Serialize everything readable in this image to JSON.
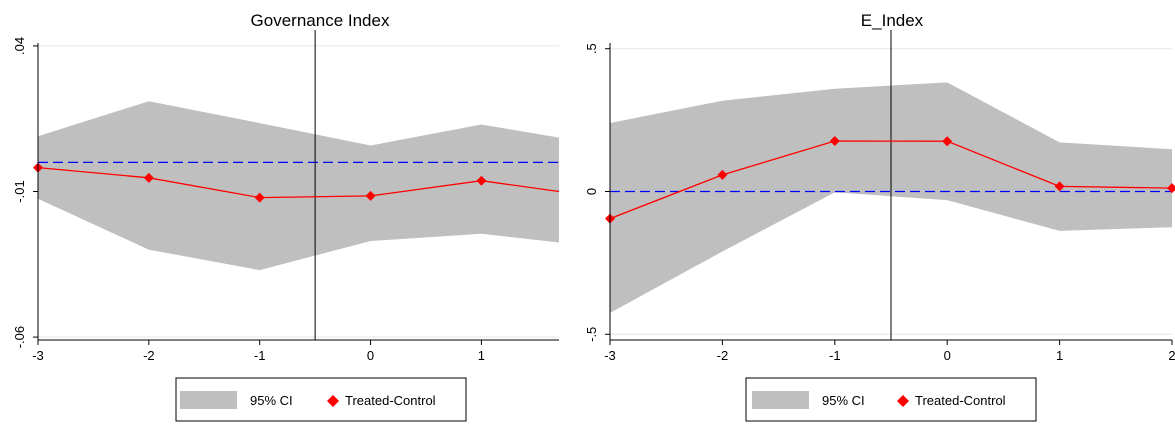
{
  "colors": {
    "ci_band": "#bfbfbf",
    "series_line": "#ff0000",
    "series_marker": "#ff0000",
    "zero_line": "#0000ff",
    "vline": "#000000",
    "gridline": "#e5e5e5",
    "text": "#000000"
  },
  "chart_data": [
    {
      "type": "line",
      "title": "Governance Index",
      "xlabel": "",
      "ylabel": "",
      "xlim": [
        -3,
        1.7
      ],
      "ylim": [
        -0.061,
        0.041
      ],
      "xticks": [
        -3,
        -2,
        -1,
        0,
        1
      ],
      "xtick_labels": [
        "-3",
        "-2",
        "-1",
        "0",
        "1"
      ],
      "yticks": [
        -0.06,
        -0.01,
        0.04
      ],
      "ytick_labels": [
        "-.06",
        "-.01",
        ".04"
      ],
      "grid": true,
      "reference_hline": 0,
      "reference_vline": -0.5,
      "x": [
        -3,
        -2,
        -1,
        0,
        1,
        1.7
      ],
      "series": [
        {
          "name": "Treated-Control",
          "kind": "line-marker",
          "values": [
            -0.0018,
            -0.0053,
            -0.0121,
            -0.0115,
            -0.0063,
            -0.01
          ]
        },
        {
          "name": "95% CI",
          "kind": "band",
          "lower": [
            -0.0125,
            -0.03,
            -0.037,
            -0.027,
            -0.0245,
            -0.0275
          ],
          "upper": [
            0.009,
            0.021,
            0.0135,
            0.0058,
            0.013,
            0.0085
          ]
        }
      ],
      "legend": {
        "position": "bottom",
        "entries": [
          "95% CI",
          "Treated-Control"
        ]
      }
    },
    {
      "type": "line",
      "title": "E_Index",
      "xlabel": "",
      "ylabel": "",
      "xlim": [
        -3,
        2
      ],
      "ylim": [
        -0.52,
        0.52
      ],
      "xticks": [
        -3,
        -2,
        -1,
        0,
        1,
        2
      ],
      "xtick_labels": [
        "-3",
        "-2",
        "-1",
        "0",
        "1",
        "2"
      ],
      "yticks": [
        -0.5,
        0,
        0.5
      ],
      "ytick_labels": [
        "-.5",
        "0",
        ".5"
      ],
      "grid": true,
      "reference_hline": 0,
      "reference_vline": -0.5,
      "x": [
        -3,
        -2,
        -1,
        0,
        1,
        2
      ],
      "series": [
        {
          "name": "Treated-Control",
          "kind": "line-marker",
          "values": [
            -0.095,
            0.058,
            0.177,
            0.176,
            0.018,
            0.012
          ]
        },
        {
          "name": "95% CI",
          "kind": "band",
          "lower": [
            -0.425,
            -0.21,
            -0.003,
            -0.03,
            -0.138,
            -0.125
          ],
          "upper": [
            0.24,
            0.318,
            0.36,
            0.382,
            0.172,
            0.148
          ]
        }
      ],
      "legend": {
        "position": "bottom",
        "entries": [
          "95% CI",
          "Treated-Control"
        ]
      }
    }
  ]
}
